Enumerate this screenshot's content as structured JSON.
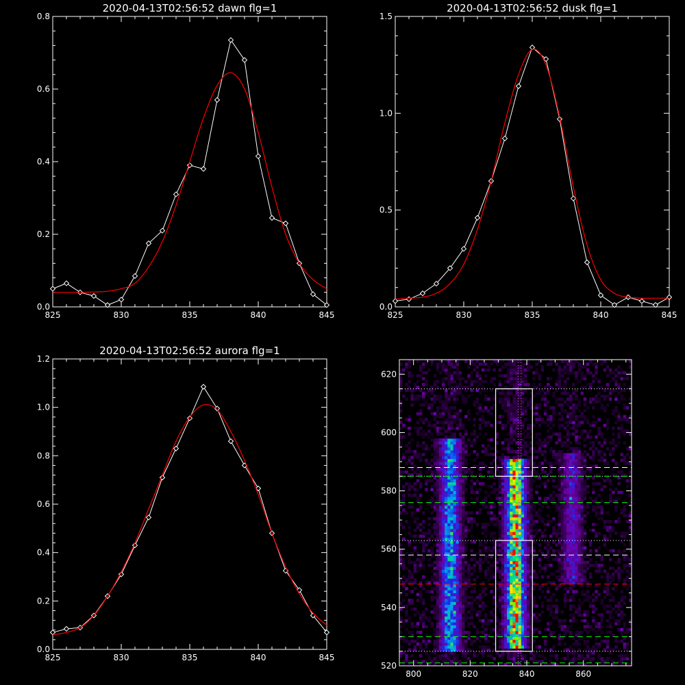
{
  "chart_data": [
    {
      "type": "line",
      "title": "2020-04-13T02:56:52 dawn flg=1",
      "xlim": [
        825,
        845
      ],
      "ylim": [
        0,
        0.8
      ],
      "xticks": [
        "825",
        "830",
        "835",
        "840",
        "845"
      ],
      "yticks": [
        "0.0",
        "0.2",
        "0.4",
        "0.6",
        "0.8"
      ],
      "series": [
        {
          "color": "#ffffff",
          "marker": "diamond",
          "x": [
            825,
            826,
            827,
            828,
            829,
            830,
            831,
            832,
            833,
            834,
            835,
            836,
            837,
            838,
            839,
            840,
            841,
            842,
            843,
            844,
            845
          ],
          "y": [
            0.05,
            0.065,
            0.04,
            0.03,
            0.005,
            0.02,
            0.085,
            0.175,
            0.21,
            0.31,
            0.39,
            0.38,
            0.57,
            0.735,
            0.68,
            0.415,
            0.245,
            0.23,
            0.12,
            0.035,
            0.005
          ]
        },
        {
          "color": "#ff0000",
          "marker": "none",
          "x": [
            825,
            826,
            827,
            828,
            829,
            830,
            831,
            832,
            833,
            834,
            835,
            836,
            837,
            838,
            839,
            840,
            841,
            842,
            843,
            844,
            845
          ],
          "y": [
            0.04,
            0.04,
            0.04,
            0.041,
            0.043,
            0.05,
            0.065,
            0.11,
            0.18,
            0.28,
            0.4,
            0.52,
            0.61,
            0.645,
            0.6,
            0.48,
            0.33,
            0.2,
            0.12,
            0.075,
            0.05
          ]
        }
      ]
    },
    {
      "type": "line",
      "title": "2020-04-13T02:56:52 dusk flg=1",
      "xlim": [
        825,
        845
      ],
      "ylim": [
        0,
        1.5
      ],
      "xticks": [
        "825",
        "830",
        "835",
        "840",
        "845"
      ],
      "yticks": [
        "0.0",
        "0.5",
        "1.0",
        "1.5"
      ],
      "series": [
        {
          "color": "#ffffff",
          "marker": "diamond",
          "x": [
            825,
            826,
            827,
            828,
            829,
            830,
            831,
            832,
            833,
            834,
            835,
            836,
            837,
            838,
            839,
            840,
            841,
            842,
            843,
            844,
            845
          ],
          "y": [
            0.03,
            0.04,
            0.07,
            0.12,
            0.2,
            0.3,
            0.46,
            0.65,
            0.87,
            1.14,
            1.34,
            1.28,
            0.97,
            0.56,
            0.23,
            0.06,
            0.01,
            0.05,
            0.03,
            0.01,
            0.05
          ]
        },
        {
          "color": "#ff0000",
          "marker": "none",
          "x": [
            825,
            826,
            827,
            828,
            829,
            830,
            831,
            832,
            833,
            834,
            835,
            836,
            837,
            838,
            839,
            840,
            841,
            842,
            843,
            844,
            845
          ],
          "y": [
            0.04,
            0.045,
            0.05,
            0.07,
            0.12,
            0.22,
            0.4,
            0.65,
            0.95,
            1.2,
            1.33,
            1.25,
            0.98,
            0.62,
            0.32,
            0.14,
            0.07,
            0.05,
            0.045,
            0.045,
            0.045
          ]
        }
      ]
    },
    {
      "type": "line",
      "title": "2020-04-13T02:56:52 aurora flg=1",
      "xlim": [
        825,
        845
      ],
      "ylim": [
        0,
        1.2
      ],
      "xticks": [
        "825",
        "830",
        "835",
        "840",
        "845"
      ],
      "yticks": [
        "0.0",
        "0.2",
        "0.4",
        "0.6",
        "0.8",
        "1.0",
        "1.2"
      ],
      "series": [
        {
          "color": "#ffffff",
          "marker": "diamond",
          "x": [
            825,
            826,
            827,
            828,
            829,
            830,
            831,
            832,
            833,
            834,
            835,
            836,
            837,
            838,
            839,
            840,
            841,
            842,
            843,
            844,
            845
          ],
          "y": [
            0.07,
            0.085,
            0.09,
            0.14,
            0.22,
            0.31,
            0.43,
            0.545,
            0.71,
            0.83,
            0.955,
            1.085,
            0.995,
            0.86,
            0.76,
            0.665,
            0.48,
            0.325,
            0.245,
            0.14,
            0.07
          ]
        },
        {
          "color": "#ff0000",
          "marker": "none",
          "x": [
            825,
            826,
            827,
            828,
            829,
            830,
            831,
            832,
            833,
            834,
            835,
            836,
            837,
            838,
            839,
            840,
            841,
            842,
            843,
            844,
            845
          ],
          "y": [
            0.06,
            0.07,
            0.09,
            0.14,
            0.22,
            0.32,
            0.44,
            0.58,
            0.72,
            0.86,
            0.96,
            1.01,
            0.99,
            0.9,
            0.78,
            0.64,
            0.48,
            0.34,
            0.23,
            0.15,
            0.1
          ]
        }
      ]
    },
    {
      "type": "heatmap",
      "title": "",
      "xlim": [
        795,
        877
      ],
      "ylim": [
        520,
        625
      ],
      "xticks": [
        "800",
        "820",
        "840",
        "860"
      ],
      "yticks": [
        "520",
        "540",
        "560",
        "580",
        "600",
        "620"
      ],
      "emission_columns": [
        {
          "x_center": 813,
          "y_range": [
            525,
            597
          ],
          "peak": 0.6
        },
        {
          "x_center": 836,
          "y_range": [
            526,
            590
          ],
          "peak": 1.0
        },
        {
          "x_center": 856,
          "y_range": [
            548,
            592
          ],
          "peak": 0.3
        }
      ],
      "boxes": [
        {
          "x": [
            829,
            842
          ],
          "y": [
            525,
            563
          ]
        },
        {
          "x": [
            829,
            842
          ],
          "y": [
            585,
            615
          ]
        }
      ],
      "lines": {
        "red_dashed_y": [
          548
        ],
        "green_dashed_y": [
          521,
          530,
          576,
          585
        ],
        "white_dashed_y": [
          558,
          588
        ],
        "white_dotted_y": [
          525,
          563,
          585,
          615
        ],
        "magenta_dotted_x": [
          837,
          838
        ]
      }
    }
  ]
}
